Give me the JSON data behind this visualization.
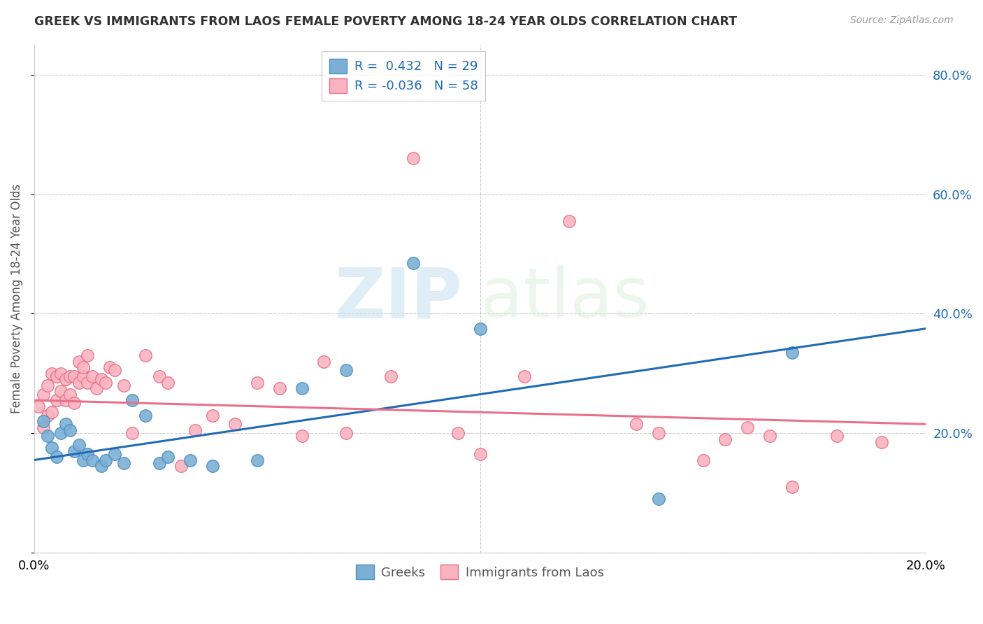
{
  "title": "GREEK VS IMMIGRANTS FROM LAOS FEMALE POVERTY AMONG 18-24 YEAR OLDS CORRELATION CHART",
  "source": "Source: ZipAtlas.com",
  "ylabel": "Female Poverty Among 18-24 Year Olds",
  "y_ticks": [
    0.0,
    0.2,
    0.4,
    0.6,
    0.8
  ],
  "y_tick_labels": [
    "",
    "20.0%",
    "40.0%",
    "60.0%",
    "80.0%"
  ],
  "xlim": [
    0.0,
    0.2
  ],
  "ylim": [
    0.0,
    0.85
  ],
  "legend_entries": [
    {
      "label": "Greeks",
      "color": "#7BAFD4",
      "R": "0.432",
      "N": "29"
    },
    {
      "label": "Immigrants from Laos",
      "color": "#F9B4C0",
      "R": "-0.036",
      "N": "58"
    }
  ],
  "greek_color": "#7BAFD4",
  "greek_edge_color": "#4A90C4",
  "laos_color": "#F9B4C0",
  "laos_edge_color": "#E8708A",
  "greek_line_color": "#1F6BB5",
  "laos_line_color": "#E8708A",
  "watermark_zip": "ZIP",
  "watermark_atlas": "atlas",
  "greek_scatter_x": [
    0.002,
    0.003,
    0.004,
    0.005,
    0.006,
    0.007,
    0.008,
    0.009,
    0.01,
    0.011,
    0.012,
    0.013,
    0.015,
    0.016,
    0.018,
    0.02,
    0.022,
    0.025,
    0.028,
    0.03,
    0.035,
    0.04,
    0.05,
    0.06,
    0.07,
    0.085,
    0.1,
    0.14,
    0.17
  ],
  "greek_scatter_y": [
    0.22,
    0.195,
    0.175,
    0.16,
    0.2,
    0.215,
    0.205,
    0.17,
    0.18,
    0.155,
    0.165,
    0.155,
    0.145,
    0.155,
    0.165,
    0.15,
    0.255,
    0.23,
    0.15,
    0.16,
    0.155,
    0.145,
    0.155,
    0.275,
    0.305,
    0.485,
    0.375,
    0.09,
    0.335
  ],
  "laos_scatter_x": [
    0.001,
    0.002,
    0.002,
    0.003,
    0.003,
    0.004,
    0.004,
    0.005,
    0.005,
    0.006,
    0.006,
    0.007,
    0.007,
    0.008,
    0.008,
    0.009,
    0.009,
    0.01,
    0.01,
    0.011,
    0.011,
    0.012,
    0.012,
    0.013,
    0.014,
    0.015,
    0.016,
    0.017,
    0.018,
    0.02,
    0.022,
    0.025,
    0.028,
    0.03,
    0.033,
    0.036,
    0.04,
    0.045,
    0.05,
    0.055,
    0.06,
    0.065,
    0.07,
    0.08,
    0.085,
    0.095,
    0.1,
    0.11,
    0.12,
    0.135,
    0.14,
    0.15,
    0.155,
    0.16,
    0.165,
    0.17,
    0.18,
    0.19
  ],
  "laos_scatter_y": [
    0.245,
    0.21,
    0.265,
    0.23,
    0.28,
    0.235,
    0.3,
    0.255,
    0.295,
    0.27,
    0.3,
    0.255,
    0.29,
    0.265,
    0.295,
    0.25,
    0.295,
    0.285,
    0.32,
    0.295,
    0.31,
    0.285,
    0.33,
    0.295,
    0.275,
    0.29,
    0.285,
    0.31,
    0.305,
    0.28,
    0.2,
    0.33,
    0.295,
    0.285,
    0.145,
    0.205,
    0.23,
    0.215,
    0.285,
    0.275,
    0.195,
    0.32,
    0.2,
    0.295,
    0.66,
    0.2,
    0.165,
    0.295,
    0.555,
    0.215,
    0.2,
    0.155,
    0.19,
    0.21,
    0.195,
    0.11,
    0.195,
    0.185
  ],
  "greek_line_x0": 0.0,
  "greek_line_y0": 0.155,
  "greek_line_x1": 0.2,
  "greek_line_y1": 0.375,
  "laos_line_x0": 0.0,
  "laos_line_y0": 0.255,
  "laos_line_x1": 0.2,
  "laos_line_y1": 0.215
}
